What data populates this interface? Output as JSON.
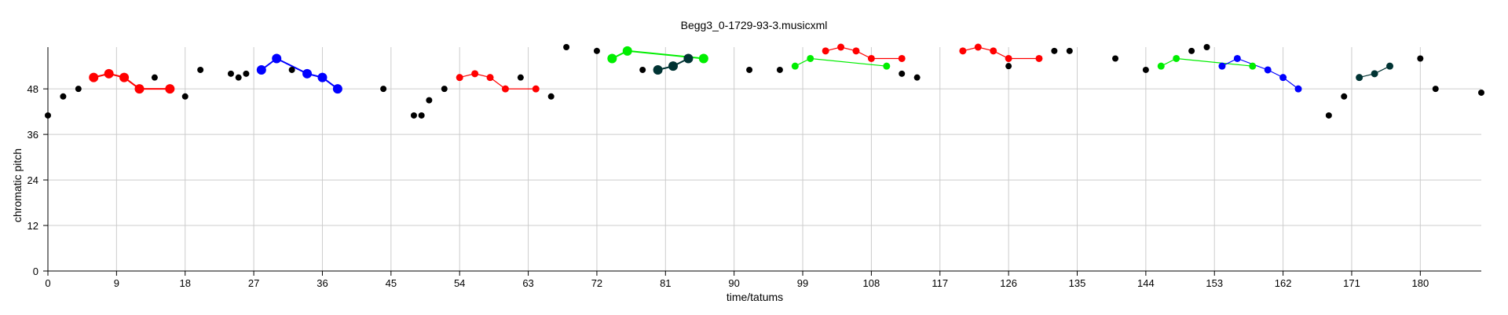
{
  "chart_data": {
    "type": "scatter",
    "title": "Begg3_0-1729-93-3.musicxml",
    "xlabel": "time/tatums",
    "ylabel": "chromatic pitch",
    "xlim": [
      0,
      188
    ],
    "ylim": [
      0,
      59
    ],
    "xticks": [
      0,
      9,
      18,
      27,
      36,
      45,
      54,
      63,
      72,
      81,
      90,
      99,
      108,
      117,
      126,
      135,
      144,
      153,
      162,
      171,
      180
    ],
    "yticks": [
      0,
      12,
      24,
      36,
      48
    ],
    "grid": true,
    "colors": {
      "black": "#000000",
      "red": "#ff0000",
      "blue": "#0000ff",
      "green": "#00ee00",
      "teal": "#003333"
    },
    "notes": [
      [
        0,
        41
      ],
      [
        2,
        46
      ],
      [
        4,
        48
      ],
      [
        14,
        51
      ],
      [
        18,
        46
      ],
      [
        20,
        53
      ],
      [
        24,
        52
      ],
      [
        25,
        51
      ],
      [
        26,
        52
      ],
      [
        32,
        53
      ],
      [
        44,
        48
      ],
      [
        48,
        41
      ],
      [
        49,
        41
      ],
      [
        50,
        45
      ],
      [
        52,
        48
      ],
      [
        62,
        51
      ],
      [
        66,
        46
      ],
      [
        68,
        59
      ],
      [
        72,
        58
      ],
      [
        78,
        53
      ],
      [
        92,
        53
      ],
      [
        96,
        53
      ],
      [
        112,
        52
      ],
      [
        114,
        51
      ],
      [
        126,
        54
      ],
      [
        132,
        58
      ],
      [
        134,
        58
      ],
      [
        140,
        56
      ],
      [
        144,
        53
      ],
      [
        150,
        58
      ],
      [
        152,
        59
      ],
      [
        168,
        41
      ],
      [
        170,
        46
      ],
      [
        180,
        56
      ],
      [
        182,
        48
      ],
      [
        188,
        47
      ]
    ],
    "patterns": [
      {
        "color": "red",
        "size": "large",
        "points": [
          [
            6,
            51
          ],
          [
            8,
            52
          ],
          [
            10,
            51
          ],
          [
            12,
            48
          ],
          [
            16,
            48
          ]
        ]
      },
      {
        "color": "blue",
        "size": "large",
        "points": [
          [
            28,
            53
          ],
          [
            30,
            56
          ],
          [
            34,
            52
          ],
          [
            36,
            51
          ],
          [
            38,
            48
          ]
        ]
      },
      {
        "color": "red",
        "size": "small",
        "points": [
          [
            54,
            51
          ],
          [
            56,
            52
          ],
          [
            58,
            51
          ],
          [
            60,
            48
          ],
          [
            64,
            48
          ]
        ]
      },
      {
        "color": "green",
        "size": "large",
        "points": [
          [
            74,
            56
          ],
          [
            76,
            58
          ],
          [
            86,
            56
          ]
        ]
      },
      {
        "color": "teal",
        "size": "large",
        "points": [
          [
            80,
            53
          ],
          [
            82,
            54
          ],
          [
            84,
            56
          ]
        ]
      },
      {
        "color": "green",
        "size": "small",
        "points": [
          [
            98,
            54
          ],
          [
            100,
            56
          ],
          [
            110,
            54
          ]
        ]
      },
      {
        "color": "red",
        "size": "small",
        "points": [
          [
            102,
            58
          ],
          [
            104,
            59
          ],
          [
            106,
            58
          ],
          [
            108,
            56
          ],
          [
            112,
            56
          ]
        ]
      },
      {
        "color": "red",
        "size": "small",
        "points": [
          [
            120,
            58
          ],
          [
            122,
            59
          ],
          [
            124,
            58
          ],
          [
            126,
            56
          ],
          [
            130,
            56
          ]
        ]
      },
      {
        "color": "green",
        "size": "small",
        "points": [
          [
            146,
            54
          ],
          [
            148,
            56
          ],
          [
            158,
            54
          ]
        ]
      },
      {
        "color": "blue",
        "size": "small",
        "points": [
          [
            154,
            54
          ],
          [
            156,
            56
          ],
          [
            160,
            53
          ],
          [
            162,
            51
          ],
          [
            164,
            48
          ]
        ]
      },
      {
        "color": "teal",
        "size": "small",
        "points": [
          [
            172,
            51
          ],
          [
            174,
            52
          ],
          [
            176,
            54
          ]
        ]
      }
    ]
  }
}
